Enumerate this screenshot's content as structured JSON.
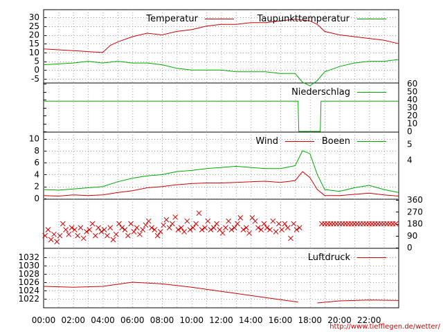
{
  "source_link": "http://www.tiefflegen.de/wetter/",
  "colors": {
    "temperature": "#cc0000",
    "dewpoint": "#00aa00",
    "grid": "#999999",
    "axis": "#000000"
  },
  "chart_data": [
    {
      "type": "line",
      "x_ticks": [
        "00:00",
        "02:00",
        "04:00",
        "06:00",
        "08:00",
        "10:00",
        "12:00",
        "14:00",
        "16:00",
        "18:00",
        "20:00",
        "22:00"
      ],
      "ylim": [
        -7,
        34
      ],
      "y_ticks": [
        30,
        25,
        20,
        15,
        10,
        5,
        0,
        -5
      ],
      "grid": true,
      "legend": "top-right",
      "series": [
        {
          "name": "Temperatur",
          "color": "#cc0000",
          "t": [
            0,
            2,
            4,
            4.5,
            5,
            6,
            7,
            8,
            9,
            10,
            11,
            12,
            13,
            14,
            15,
            16,
            17,
            18,
            18.5,
            19,
            20,
            21,
            22,
            23,
            24
          ],
          "values": [
            12,
            11,
            10,
            14,
            16,
            19,
            21,
            20,
            22,
            23,
            25,
            26,
            26,
            27,
            27,
            28,
            29,
            28,
            26,
            22,
            20,
            19,
            18,
            17,
            15
          ]
        },
        {
          "name": "Taupunkttemperatur",
          "color": "#00aa00",
          "t": [
            0,
            2,
            3,
            4,
            5,
            6,
            7,
            8,
            9,
            10,
            11,
            12,
            13,
            14,
            15,
            16,
            17,
            17.5,
            18,
            18.5,
            19,
            20,
            21,
            22,
            23,
            24
          ],
          "values": [
            3,
            4,
            5,
            4,
            5,
            4,
            4,
            3,
            1,
            0,
            0,
            0,
            -1,
            -1,
            -1,
            -2,
            -2,
            -7,
            -9,
            -6,
            -1,
            2,
            4,
            5,
            5,
            6
          ]
        }
      ]
    },
    {
      "type": "line",
      "x_ticks": [
        "00:00",
        "02:00",
        "04:00",
        "06:00",
        "08:00",
        "10:00",
        "12:00",
        "14:00",
        "16:00",
        "18:00",
        "20:00",
        "22:00"
      ],
      "ylim": [
        0,
        60
      ],
      "y_ticks": [
        60,
        50,
        40,
        30,
        20,
        10,
        0
      ],
      "grid": false,
      "legend": "top-right",
      "series": [
        {
          "name": "Niederschlag",
          "color": "#00aa00",
          "t": [
            0,
            17.2,
            17.25,
            18.7,
            18.75,
            24
          ],
          "values": [
            38,
            38,
            0,
            0,
            38,
            38
          ]
        }
      ]
    },
    {
      "type": "line",
      "x_ticks": [
        "00:00",
        "02:00",
        "04:00",
        "06:00",
        "08:00",
        "10:00",
        "12:00",
        "14:00",
        "16:00",
        "18:00",
        "20:00",
        "22:00"
      ],
      "ylim": [
        0,
        11
      ],
      "y_ticks": [
        10,
        8,
        6,
        4,
        2,
        0
      ],
      "right_ticks": [
        "5",
        "4"
      ],
      "grid": true,
      "legend": "top-right",
      "series": [
        {
          "name": "Wind",
          "color": "#cc0000",
          "t": [
            0,
            1,
            2,
            3,
            4,
            5,
            6,
            7,
            8,
            9,
            10,
            11,
            12,
            13,
            14,
            15,
            16,
            17,
            17.5,
            18,
            18.5,
            19,
            20,
            21,
            22,
            23,
            24
          ],
          "values": [
            0.5,
            0.4,
            0.6,
            0.5,
            0.6,
            1.0,
            1.3,
            1.8,
            2.0,
            2.3,
            2.5,
            2.6,
            2.6,
            2.7,
            2.8,
            2.9,
            2.7,
            3.0,
            4.5,
            3.5,
            1.5,
            0.5,
            0.5,
            0.7,
            0.9,
            0.6,
            0.4
          ]
        },
        {
          "name": "Boeen",
          "color": "#00aa00",
          "t": [
            0,
            1,
            2,
            3,
            4,
            5,
            6,
            7,
            8,
            9,
            10,
            11,
            12,
            13,
            14,
            15,
            16,
            17,
            17.5,
            18,
            18.5,
            19,
            20,
            21,
            22,
            23,
            24
          ],
          "values": [
            1.5,
            1.4,
            1.6,
            1.8,
            2.0,
            2.8,
            3.4,
            3.8,
            4.0,
            4.5,
            4.7,
            5.0,
            5.2,
            5.4,
            5.2,
            5.0,
            5.0,
            5.5,
            8.0,
            7.5,
            4.0,
            1.5,
            1.2,
            1.8,
            2.2,
            1.5,
            1.0
          ]
        }
      ]
    },
    {
      "type": "scatter",
      "x_ticks": [
        "00:00",
        "02:00",
        "04:00",
        "06:00",
        "08:00",
        "10:00",
        "12:00",
        "14:00",
        "16:00",
        "18:00",
        "20:00",
        "22:00"
      ],
      "ylim": [
        0,
        360
      ],
      "right_ticks": [
        360,
        270,
        180,
        90,
        0
      ],
      "marker": "x",
      "color": "#cc0000",
      "series": [
        {
          "name": "",
          "t": [
            0.1,
            0.3,
            0.5,
            0.7,
            0.9,
            1.1,
            1.3,
            1.5,
            1.7,
            1.9,
            2.1,
            2.3,
            2.5,
            2.7,
            2.9,
            3.1,
            3.3,
            3.5,
            3.7,
            3.9,
            4.1,
            4.3,
            4.5,
            4.7,
            4.9,
            5.1,
            5.3,
            5.5,
            5.7,
            5.9,
            6.1,
            6.3,
            6.5,
            6.7,
            6.9,
            7.1,
            7.3,
            7.5,
            7.7,
            7.9,
            8.1,
            8.3,
            8.5,
            8.7,
            8.9,
            9.1,
            9.3,
            9.5,
            9.7,
            9.9,
            10.1,
            10.3,
            10.5,
            10.7,
            10.9,
            11.1,
            11.3,
            11.5,
            11.7,
            11.9,
            12.1,
            12.3,
            12.5,
            12.7,
            12.9,
            13.1,
            13.3,
            13.5,
            13.7,
            13.9,
            14.1,
            14.3,
            14.5,
            14.7,
            14.9,
            15.1,
            15.3,
            15.5,
            15.7,
            15.9,
            16.1,
            16.3,
            16.5,
            16.7,
            16.9,
            17.1,
            17.3
          ],
          "values": [
            90,
            135,
            60,
            100,
            45,
            90,
            180,
            135,
            100,
            150,
            135,
            90,
            150,
            70,
            120,
            135,
            180,
            90,
            150,
            120,
            135,
            90,
            150,
            60,
            100,
            180,
            150,
            135,
            90,
            180,
            120,
            150,
            100,
            135,
            170,
            200,
            150,
            135,
            90,
            120,
            170,
            210,
            150,
            180,
            230,
            135,
            150,
            120,
            200,
            135,
            150,
            180,
            260,
            135,
            150,
            200,
            135,
            150,
            180,
            135,
            110,
            150,
            200,
            135,
            150,
            180,
            225,
            135,
            150,
            110,
            225,
            200,
            150,
            135,
            180,
            150,
            135,
            200,
            120,
            180,
            135,
            180,
            150,
            70,
            180,
            135,
            150
          ]
        },
        {
          "name": "",
          "t": [
            18.8,
            19.0,
            19.2,
            19.4,
            19.6,
            19.8,
            20.0,
            20.2,
            20.4,
            20.6,
            20.8,
            21.0,
            21.2,
            21.4,
            21.6,
            21.8,
            22.0,
            22.2,
            22.4,
            22.6,
            22.8,
            23.0,
            23.2,
            23.4,
            23.6,
            23.8
          ],
          "values": [
            180,
            180,
            180,
            180,
            180,
            180,
            180,
            180,
            180,
            180,
            180,
            180,
            180,
            180,
            180,
            180,
            180,
            180,
            180,
            180,
            180,
            180,
            180,
            180,
            180,
            180
          ]
        }
      ]
    },
    {
      "type": "line",
      "x_ticks": [
        "00:00",
        "02:00",
        "04:00",
        "06:00",
        "08:00",
        "10:00",
        "12:00",
        "14:00",
        "16:00",
        "18:00",
        "20:00",
        "22:00"
      ],
      "ylim": [
        1020,
        1034
      ],
      "y_ticks": [
        1032,
        1030,
        1028,
        1026,
        1024,
        1022
      ],
      "grid": true,
      "legend": "top-right",
      "series": [
        {
          "name": "Luftdruck",
          "color": "#cc0000",
          "t": [
            0,
            2,
            4,
            6,
            8,
            10,
            12,
            14,
            16,
            17.2
          ],
          "values": [
            1025.0,
            1024.8,
            1025.0,
            1026.0,
            1025.6,
            1024.8,
            1023.8,
            1022.8,
            1021.8,
            1021.2
          ]
        },
        {
          "name": "",
          "color": "#cc0000",
          "t": [
            18.5,
            20,
            22,
            24
          ],
          "values": [
            1021.0,
            1021.5,
            1021.7,
            1021.6
          ]
        }
      ]
    }
  ]
}
